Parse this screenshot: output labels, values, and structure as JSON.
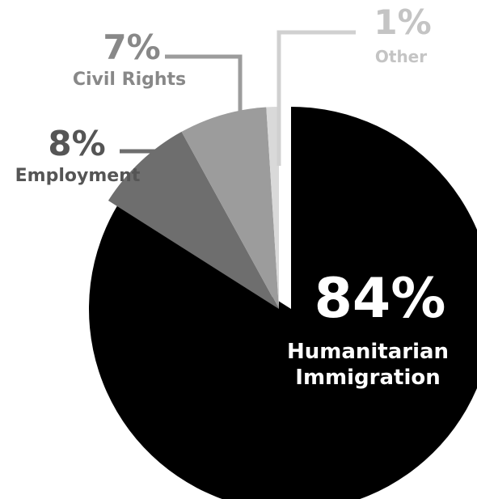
{
  "chart_data": {
    "type": "pie",
    "title": "",
    "slices": [
      {
        "label_lines": [
          "Humanitarian",
          "Immigration"
        ],
        "value": 84,
        "value_label": "84%",
        "color": "#000000",
        "text_color": "#ffffff"
      },
      {
        "label_lines": [
          "Employment"
        ],
        "value": 8,
        "value_label": "8%",
        "color": "#6e6e6e",
        "text_color": "#555555"
      },
      {
        "label_lines": [
          "Civil Rights"
        ],
        "value": 7,
        "value_label": "7%",
        "color": "#9c9c9c",
        "text_color": "#888888"
      },
      {
        "label_lines": [
          "Other"
        ],
        "value": 1,
        "value_label": "1%",
        "color": "#d9d9d9",
        "text_color": "#c4c4c4"
      }
    ],
    "legend": "none",
    "start_angle": "top",
    "direction": "clockwise",
    "exploded_slice": "Humanitarian Immigration"
  }
}
